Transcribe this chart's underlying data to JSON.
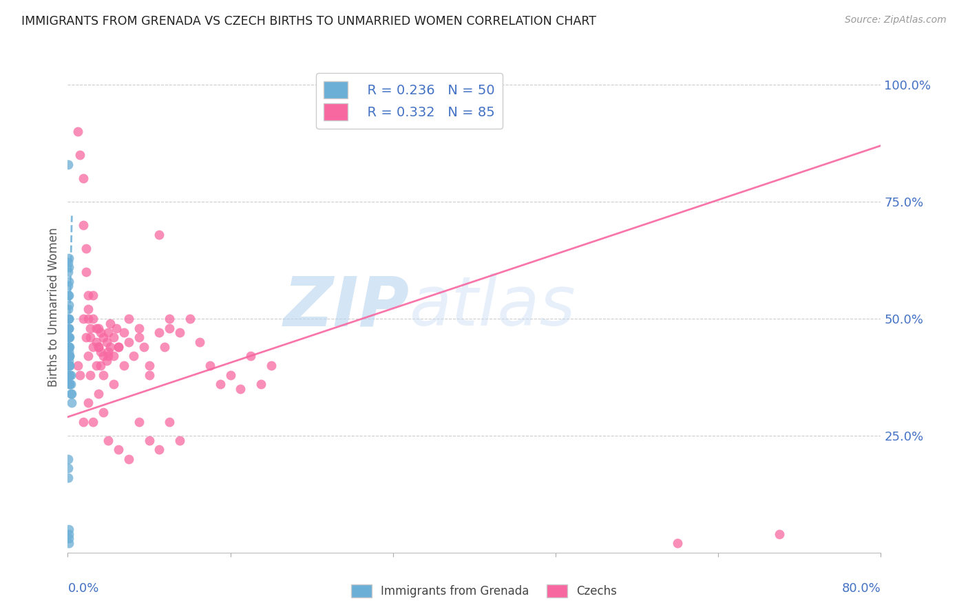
{
  "title": "IMMIGRANTS FROM GRENADA VS CZECH BIRTHS TO UNMARRIED WOMEN CORRELATION CHART",
  "source": "Source: ZipAtlas.com",
  "ylabel": "Births to Unmarried Women",
  "right_yticks": [
    "100.0%",
    "75.0%",
    "50.0%",
    "25.0%"
  ],
  "right_ytick_vals": [
    1.0,
    0.75,
    0.5,
    0.25
  ],
  "legend_r1": "R = 0.236",
  "legend_n1": "N = 50",
  "legend_r2": "R = 0.332",
  "legend_n2": "N = 85",
  "color_blue": "#6baed6",
  "color_pink": "#f768a1",
  "color_text_blue": "#4472c4",
  "watermark_zip": "ZIP",
  "watermark_atlas": "atlas",
  "xmin": 0.0,
  "xmax": 0.8,
  "ymin": 0.0,
  "ymax": 1.05,
  "blue_scatter_x": [
    0.0005,
    0.0005,
    0.0005,
    0.0005,
    0.0005,
    0.0005,
    0.0005,
    0.0005,
    0.0005,
    0.0005,
    0.0008,
    0.0008,
    0.0008,
    0.0008,
    0.0008,
    0.0008,
    0.0008,
    0.0008,
    0.0008,
    0.0008,
    0.001,
    0.001,
    0.001,
    0.001,
    0.001,
    0.001,
    0.001,
    0.001,
    0.0015,
    0.0015,
    0.0015,
    0.0015,
    0.0015,
    0.0015,
    0.002,
    0.002,
    0.002,
    0.002,
    0.003,
    0.003,
    0.003,
    0.004,
    0.004,
    0.0005,
    0.0005,
    0.0005,
    0.001,
    0.001,
    0.001,
    0.001
  ],
  "blue_scatter_y": [
    0.83,
    0.62,
    0.6,
    0.57,
    0.55,
    0.52,
    0.5,
    0.48,
    0.46,
    0.44,
    0.63,
    0.61,
    0.58,
    0.55,
    0.53,
    0.5,
    0.48,
    0.46,
    0.44,
    0.42,
    0.5,
    0.48,
    0.46,
    0.44,
    0.43,
    0.42,
    0.41,
    0.4,
    0.46,
    0.44,
    0.42,
    0.4,
    0.38,
    0.36,
    0.42,
    0.4,
    0.38,
    0.36,
    0.38,
    0.36,
    0.34,
    0.34,
    0.32,
    0.2,
    0.18,
    0.16,
    0.05,
    0.04,
    0.03,
    0.02
  ],
  "pink_scatter_x": [
    0.01,
    0.012,
    0.015,
    0.015,
    0.018,
    0.018,
    0.02,
    0.02,
    0.02,
    0.022,
    0.022,
    0.025,
    0.025,
    0.028,
    0.028,
    0.03,
    0.03,
    0.032,
    0.032,
    0.035,
    0.035,
    0.038,
    0.038,
    0.04,
    0.04,
    0.042,
    0.042,
    0.045,
    0.045,
    0.048,
    0.05,
    0.055,
    0.06,
    0.065,
    0.07,
    0.075,
    0.08,
    0.09,
    0.095,
    0.1,
    0.01,
    0.012,
    0.015,
    0.018,
    0.02,
    0.022,
    0.025,
    0.028,
    0.03,
    0.032,
    0.035,
    0.04,
    0.045,
    0.05,
    0.055,
    0.06,
    0.07,
    0.08,
    0.09,
    0.1,
    0.11,
    0.12,
    0.13,
    0.14,
    0.15,
    0.16,
    0.17,
    0.18,
    0.19,
    0.2,
    0.015,
    0.02,
    0.025,
    0.03,
    0.035,
    0.04,
    0.05,
    0.06,
    0.07,
    0.08,
    0.09,
    0.1,
    0.11,
    0.6,
    0.7
  ],
  "pink_scatter_y": [
    0.9,
    0.85,
    0.8,
    0.7,
    0.65,
    0.6,
    0.55,
    0.52,
    0.5,
    0.48,
    0.46,
    0.55,
    0.5,
    0.48,
    0.45,
    0.48,
    0.44,
    0.47,
    0.43,
    0.46,
    0.42,
    0.45,
    0.41,
    0.47,
    0.43,
    0.49,
    0.44,
    0.46,
    0.42,
    0.48,
    0.44,
    0.47,
    0.45,
    0.42,
    0.48,
    0.44,
    0.4,
    0.47,
    0.44,
    0.5,
    0.4,
    0.38,
    0.5,
    0.46,
    0.42,
    0.38,
    0.44,
    0.4,
    0.44,
    0.4,
    0.38,
    0.42,
    0.36,
    0.44,
    0.4,
    0.5,
    0.46,
    0.38,
    0.68,
    0.48,
    0.47,
    0.5,
    0.45,
    0.4,
    0.36,
    0.38,
    0.35,
    0.42,
    0.36,
    0.4,
    0.28,
    0.32,
    0.28,
    0.34,
    0.3,
    0.24,
    0.22,
    0.2,
    0.28,
    0.24,
    0.22,
    0.28,
    0.24,
    0.02,
    0.04
  ],
  "blue_line_x": [
    0.0005,
    0.004
  ],
  "blue_line_y": [
    0.36,
    0.72
  ],
  "pink_line_x": [
    0.0,
    0.8
  ],
  "pink_line_y": [
    0.29,
    0.87
  ]
}
